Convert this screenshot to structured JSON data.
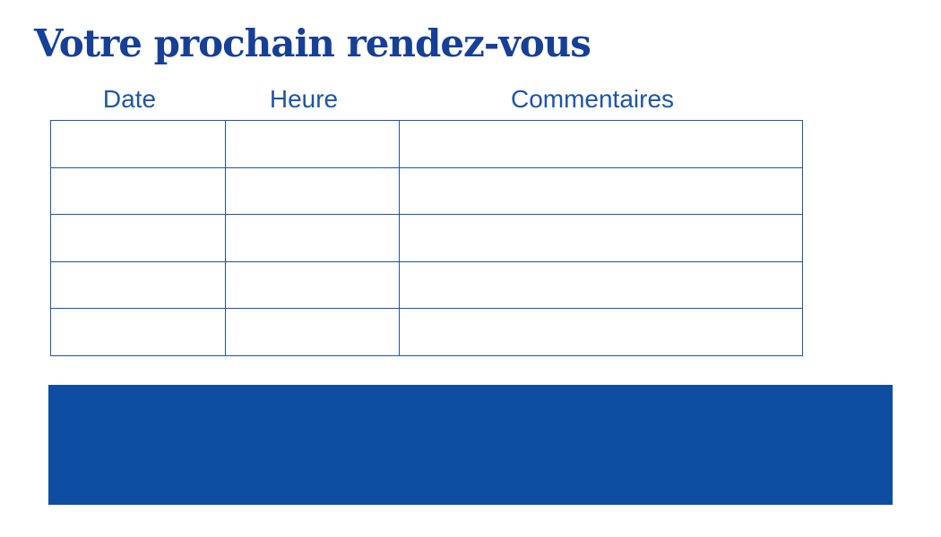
{
  "page": {
    "title": "Votre prochain rendez-vous"
  },
  "appointments_table": {
    "columns": [
      {
        "label": "Date"
      },
      {
        "label": "Heure"
      },
      {
        "label": "Commentaires"
      }
    ],
    "row_count": 5
  },
  "colors": {
    "title_color": "#163F96",
    "header_text": "#1D55A9",
    "table_border": "#1E55A6",
    "banner": "#0D4EA2"
  }
}
